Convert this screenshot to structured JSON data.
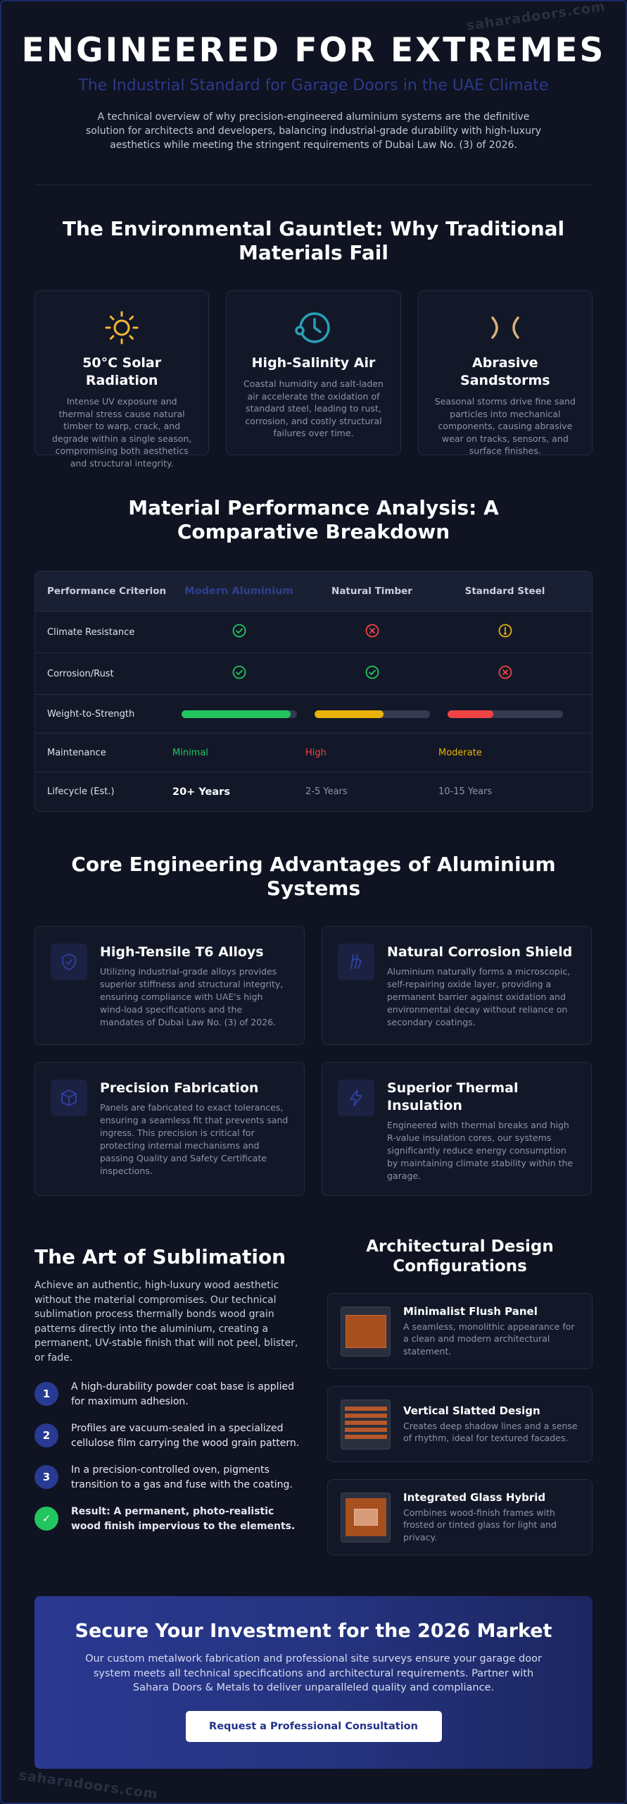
{
  "brand": {
    "watermark": "saharadoors.com"
  },
  "hero": {
    "title": "ENGINEERED FOR EXTREMES",
    "subtitle": "The Industrial Standard for Garage Doors in the UAE Climate",
    "intro": "A technical overview of why precision-engineered aluminium systems are the definitive solution for architects and developers, balancing industrial-grade durability with high-luxury aesthetics while meeting the stringent requirements of Dubai Law No. (3) of 2026."
  },
  "gauntlet": {
    "title": "The Environmental Gauntlet: Why Traditional Materials Fail",
    "cards": [
      {
        "icon": "sun-icon",
        "title": "50°C Solar Radiation",
        "text": "Intense UV exposure and thermal stress cause natural timber to warp, crack, and degrade within a single season, compromising both aesthetics and structural integrity."
      },
      {
        "icon": "salt-corrosion-icon",
        "title": "High-Salinity Air",
        "text": "Coastal humidity and salt-laden air accelerate the oxidation of standard steel, leading to rust, corrosion, and costly structural failures over time."
      },
      {
        "icon": "wind-icon",
        "title": "Abrasive Sandstorms",
        "text": "Seasonal storms drive fine sand particles into mechanical components, causing abrasive wear on tracks, sensors, and surface finishes."
      }
    ]
  },
  "comparison": {
    "title": "Material Performance Analysis: A Comparative Breakdown",
    "headers": [
      "Performance Criterion",
      "Modern Aluminium",
      "Natural Timber",
      "Standard Steel"
    ],
    "climate": {
      "label": "Climate Resistance"
    },
    "corrosion": {
      "label": "Corrosion/Rust"
    },
    "weight": {
      "label": "Weight-to-Strength",
      "levels": [
        0.95,
        0.6,
        0.4
      ],
      "colors": [
        "#22c55e",
        "#eab308",
        "#ef4444"
      ]
    },
    "maintenance": {
      "label": "Maintenance",
      "values": [
        "Minimal",
        "High",
        "Moderate"
      ],
      "colors": [
        "#22c55e",
        "#ef4444",
        "#eab308"
      ]
    },
    "lifecycle": {
      "label": "Lifecycle (Est.)",
      "values": [
        "20+ Years",
        "2-5 Years",
        "10-15 Years"
      ]
    }
  },
  "advantages": {
    "title": "Core Engineering Advantages of Aluminium Systems",
    "cards": [
      {
        "icon": "shield-icon",
        "title": "High-Tensile T6 Alloys",
        "text": "Utilizing industrial-grade alloys provides superior stiffness and structural integrity, ensuring compliance with UAE's high wind-load specifications and the mandates of Dubai Law No. (3) of 2026."
      },
      {
        "icon": "flask-icon",
        "title": "Natural Corrosion Shield",
        "text": "Aluminium naturally forms a microscopic, self-repairing oxide layer, providing a permanent barrier against oxidation and environmental decay without reliance on secondary coatings."
      },
      {
        "icon": "cube-icon",
        "title": "Precision Fabrication",
        "text": "Panels are fabricated to exact tolerances, ensuring a seamless fit that prevents sand ingress. This precision is critical for protecting internal mechanisms and passing Quality and Safety Certificate inspections."
      },
      {
        "icon": "lightning-icon",
        "title": "Superior Thermal Insulation",
        "text": "Engineered with thermal breaks and high R-value insulation cores, our systems significantly reduce energy consumption by maintaining climate stability within the garage."
      }
    ]
  },
  "sublimation": {
    "title": "The Art of Sublimation",
    "lead": "Achieve an authentic, high-luxury wood aesthetic without the material compromises. Our technical sublimation process thermally bonds wood grain patterns directly into the aluminium, creating a permanent, UV-stable finish that will not peel, blister, or fade.",
    "steps": [
      {
        "num": "1",
        "text": "A high-durability powder coat base is applied for maximum adhesion."
      },
      {
        "num": "2",
        "text": "Profiles are vacuum-sealed in a specialized cellulose film carrying the wood grain pattern."
      },
      {
        "num": "3",
        "text": "In a precision-controlled oven, pigments transition to a gas and fuse with the coating."
      },
      {
        "num": "✓",
        "text": "Result: A permanent, photo-realistic wood finish impervious to the elements."
      }
    ]
  },
  "configs": {
    "title": "Architectural Design Configurations",
    "items": [
      {
        "title": "Minimalist Flush Panel",
        "text": "A seamless, monolithic appearance for a clean and modern architectural statement."
      },
      {
        "title": "Vertical Slatted Design",
        "text": "Creates deep shadow lines and a sense of rhythm, ideal for textured facades."
      },
      {
        "title": "Integrated Glass Hybrid",
        "text": "Combines wood-finish frames with frosted or tinted glass for light and privacy."
      }
    ]
  },
  "cta": {
    "title": "Secure Your Investment for the 2026 Market",
    "text": "Our custom metalwork fabrication and professional site surveys ensure your garage door system meets all technical specifications and architectural requirements. Partner with Sahara Doors & Metals to deliver unparalleled quality and compliance.",
    "button": "Request a Professional Consultation"
  }
}
